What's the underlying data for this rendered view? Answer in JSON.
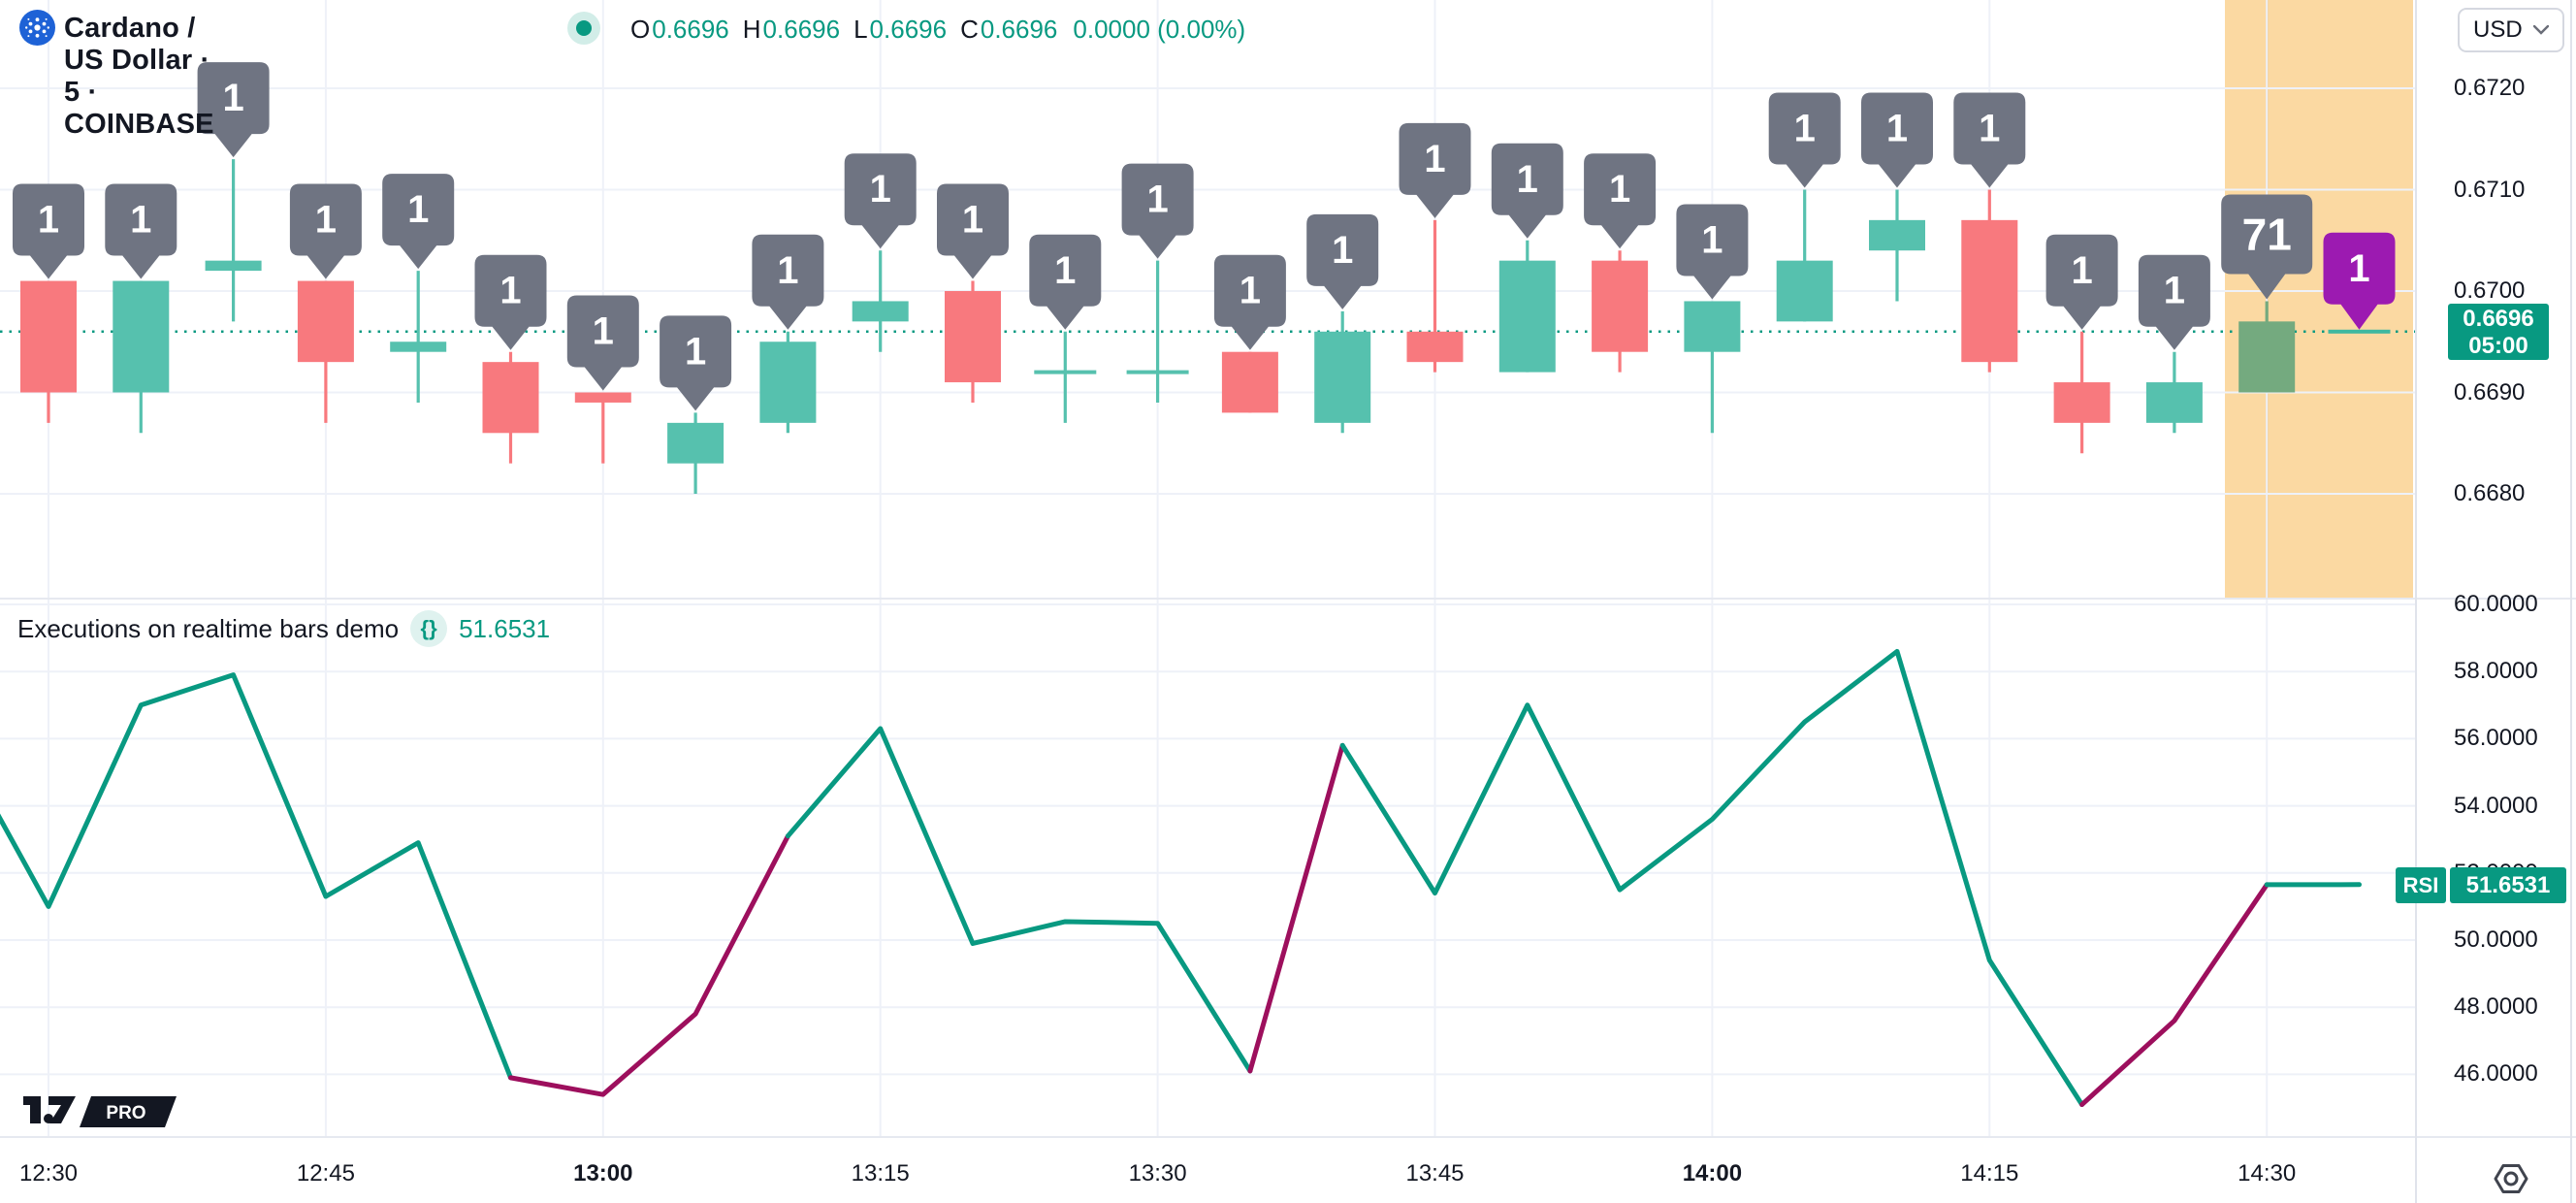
{
  "header": {
    "symbol_title": "Cardano / US Dollar · 5 · COINBASE",
    "ohlc": [
      {
        "label": "O",
        "value": "0.6696"
      },
      {
        "label": "H",
        "value": "0.6696"
      },
      {
        "label": "L",
        "value": "0.6696"
      },
      {
        "label": "C",
        "value": "0.6696"
      }
    ],
    "change": "0.0000 (0.00%)"
  },
  "currency_button": {
    "label": "USD"
  },
  "price_axis": {
    "ticks": [
      "0.6720",
      "0.6710",
      "0.6700",
      "0.6690",
      "0.6680"
    ],
    "last_price_badge": {
      "price": "0.6696",
      "countdown": "05:00"
    }
  },
  "rsi_axis": {
    "ticks": [
      "60.0000",
      "58.0000",
      "56.0000",
      "54.0000",
      "52.0000",
      "50.0000",
      "48.0000",
      "46.0000"
    ],
    "badge": {
      "label": "RSI",
      "value": "51.6531"
    }
  },
  "time_axis": {
    "labels": [
      {
        "text": "12:30",
        "bold": false
      },
      {
        "text": "12:45",
        "bold": false
      },
      {
        "text": "13:00",
        "bold": true
      },
      {
        "text": "13:15",
        "bold": false
      },
      {
        "text": "13:30",
        "bold": false
      },
      {
        "text": "13:45",
        "bold": false
      },
      {
        "text": "14:00",
        "bold": true
      },
      {
        "text": "14:15",
        "bold": false
      },
      {
        "text": "14:30",
        "bold": false
      }
    ]
  },
  "indicator": {
    "title": "Executions on realtime bars demo",
    "icon": "{}",
    "value": "51.6531"
  },
  "logo": {
    "pro_label": "PRO"
  },
  "colors": {
    "up": "#56c1ae",
    "down": "#f8797e",
    "muted_up": "#74aa7f",
    "flat_tick": "#3fb8a0",
    "marker_gray": "#6f7482",
    "marker_purple": "#9c1ab1",
    "rsi_green": "#089981",
    "rsi_maroon": "#9d0f5d",
    "accent": "#089981",
    "band": "#fbd9a2",
    "grid": "#eef1f8",
    "dotted_price_line": "#089981"
  },
  "chart_data": {
    "type": "candlestick+line",
    "symbol": "ADA/USD COINBASE 5m",
    "price_axis_range": [
      0.6674,
      0.6723
    ],
    "rsi_axis_range": [
      44.5,
      60.5
    ],
    "current_price": 0.6696,
    "highlight_band_times": [
      "14:30",
      "14:35"
    ],
    "candles": [
      {
        "time": "12:30",
        "open": 0.6701,
        "high": 0.6701,
        "low": 0.6687,
        "close": 0.669,
        "marker": "1"
      },
      {
        "time": "12:35",
        "open": 0.669,
        "high": 0.6701,
        "low": 0.6686,
        "close": 0.6701,
        "marker": "1"
      },
      {
        "time": "12:40",
        "open": 0.6702,
        "high": 0.6713,
        "low": 0.6697,
        "close": 0.6703,
        "marker": "1"
      },
      {
        "time": "12:45",
        "open": 0.6701,
        "high": 0.6701,
        "low": 0.6687,
        "close": 0.6693,
        "marker": "1"
      },
      {
        "time": "12:50",
        "open": 0.6694,
        "high": 0.6702,
        "low": 0.6689,
        "close": 0.6695,
        "marker": "1"
      },
      {
        "time": "12:55",
        "open": 0.6693,
        "high": 0.6694,
        "low": 0.6683,
        "close": 0.6686,
        "marker": "1"
      },
      {
        "time": "13:00",
        "open": 0.669,
        "high": 0.669,
        "low": 0.6683,
        "close": 0.6689,
        "marker": "1"
      },
      {
        "time": "13:05",
        "open": 0.6683,
        "high": 0.6688,
        "low": 0.668,
        "close": 0.6687,
        "marker": "1"
      },
      {
        "time": "13:10",
        "open": 0.6687,
        "high": 0.6696,
        "low": 0.6686,
        "close": 0.6695,
        "marker": "1"
      },
      {
        "time": "13:15",
        "open": 0.6697,
        "high": 0.6704,
        "low": 0.6694,
        "close": 0.6699,
        "marker": "1"
      },
      {
        "time": "13:20",
        "open": 0.67,
        "high": 0.6701,
        "low": 0.6689,
        "close": 0.6691,
        "marker": "1"
      },
      {
        "time": "13:25",
        "open": 0.6692,
        "high": 0.6696,
        "low": 0.6687,
        "close": 0.6692,
        "marker": "1"
      },
      {
        "time": "13:30",
        "open": 0.6692,
        "high": 0.6703,
        "low": 0.6689,
        "close": 0.6692,
        "marker": "1"
      },
      {
        "time": "13:35",
        "open": 0.6694,
        "high": 0.6694,
        "low": 0.6688,
        "close": 0.6688,
        "marker": "1"
      },
      {
        "time": "13:40",
        "open": 0.6687,
        "high": 0.6698,
        "low": 0.6686,
        "close": 0.6696,
        "marker": "1"
      },
      {
        "time": "13:45",
        "open": 0.6696,
        "high": 0.6707,
        "low": 0.6692,
        "close": 0.6693,
        "marker": "1"
      },
      {
        "time": "13:50",
        "open": 0.6692,
        "high": 0.6705,
        "low": 0.6692,
        "close": 0.6703,
        "marker": "1"
      },
      {
        "time": "13:55",
        "open": 0.6703,
        "high": 0.6704,
        "low": 0.6692,
        "close": 0.6694,
        "marker": "1"
      },
      {
        "time": "14:00",
        "open": 0.6694,
        "high": 0.6699,
        "low": 0.6686,
        "close": 0.6699,
        "marker": "1"
      },
      {
        "time": "14:05",
        "open": 0.6697,
        "high": 0.671,
        "low": 0.6697,
        "close": 0.6703,
        "marker": "1"
      },
      {
        "time": "14:10",
        "open": 0.6704,
        "high": 0.671,
        "low": 0.6699,
        "close": 0.6707,
        "marker": "1"
      },
      {
        "time": "14:15",
        "open": 0.6707,
        "high": 0.671,
        "low": 0.6692,
        "close": 0.6693,
        "marker": "1"
      },
      {
        "time": "14:20",
        "open": 0.6691,
        "high": 0.6696,
        "low": 0.6684,
        "close": 0.6687,
        "marker": "1"
      },
      {
        "time": "14:25",
        "open": 0.6687,
        "high": 0.6694,
        "low": 0.6686,
        "close": 0.6691,
        "marker": "1"
      },
      {
        "time": "14:30",
        "open": 0.669,
        "high": 0.6699,
        "low": 0.669,
        "close": 0.6697,
        "marker": "71",
        "muted": true
      },
      {
        "time": "14:35",
        "open": 0.6696,
        "high": 0.6696,
        "low": 0.6696,
        "close": 0.6696,
        "marker": "1",
        "marker_color": "purple"
      }
    ],
    "rsi": {
      "name": "RSI",
      "current": 51.6531,
      "lead_in_value": 56.0,
      "points": [
        {
          "time": "12:30",
          "value": 51.0,
          "seg": "green"
        },
        {
          "time": "12:35",
          "value": 57.0,
          "seg": "green"
        },
        {
          "time": "12:40",
          "value": 57.9,
          "seg": "green"
        },
        {
          "time": "12:45",
          "value": 51.3,
          "seg": "green"
        },
        {
          "time": "12:50",
          "value": 52.9,
          "seg": "green"
        },
        {
          "time": "12:55",
          "value": 45.9,
          "seg": "maroon"
        },
        {
          "time": "13:00",
          "value": 45.4,
          "seg": "maroon"
        },
        {
          "time": "13:05",
          "value": 47.8,
          "seg": "maroon"
        },
        {
          "time": "13:10",
          "value": 53.1,
          "seg": "green"
        },
        {
          "time": "13:15",
          "value": 56.3,
          "seg": "green"
        },
        {
          "time": "13:20",
          "value": 49.9,
          "seg": "green"
        },
        {
          "time": "13:25",
          "value": 50.55,
          "seg": "green"
        },
        {
          "time": "13:30",
          "value": 50.5,
          "seg": "green"
        },
        {
          "time": "13:35",
          "value": 46.1,
          "seg": "maroon"
        },
        {
          "time": "13:40",
          "value": 55.8,
          "seg": "green"
        },
        {
          "time": "13:45",
          "value": 51.4,
          "seg": "green"
        },
        {
          "time": "13:50",
          "value": 57.0,
          "seg": "green"
        },
        {
          "time": "13:55",
          "value": 51.5,
          "seg": "green"
        },
        {
          "time": "14:00",
          "value": 53.6,
          "seg": "green"
        },
        {
          "time": "14:05",
          "value": 56.5,
          "seg": "green"
        },
        {
          "time": "14:10",
          "value": 58.6,
          "seg": "green"
        },
        {
          "time": "14:15",
          "value": 49.4,
          "seg": "green"
        },
        {
          "time": "14:20",
          "value": 45.1,
          "seg": "maroon"
        },
        {
          "time": "14:25",
          "value": 47.6,
          "seg": "maroon"
        },
        {
          "time": "14:30",
          "value": 51.65,
          "seg": "green"
        },
        {
          "time": "14:35",
          "value": 51.6531,
          "seg": "green"
        }
      ]
    }
  }
}
